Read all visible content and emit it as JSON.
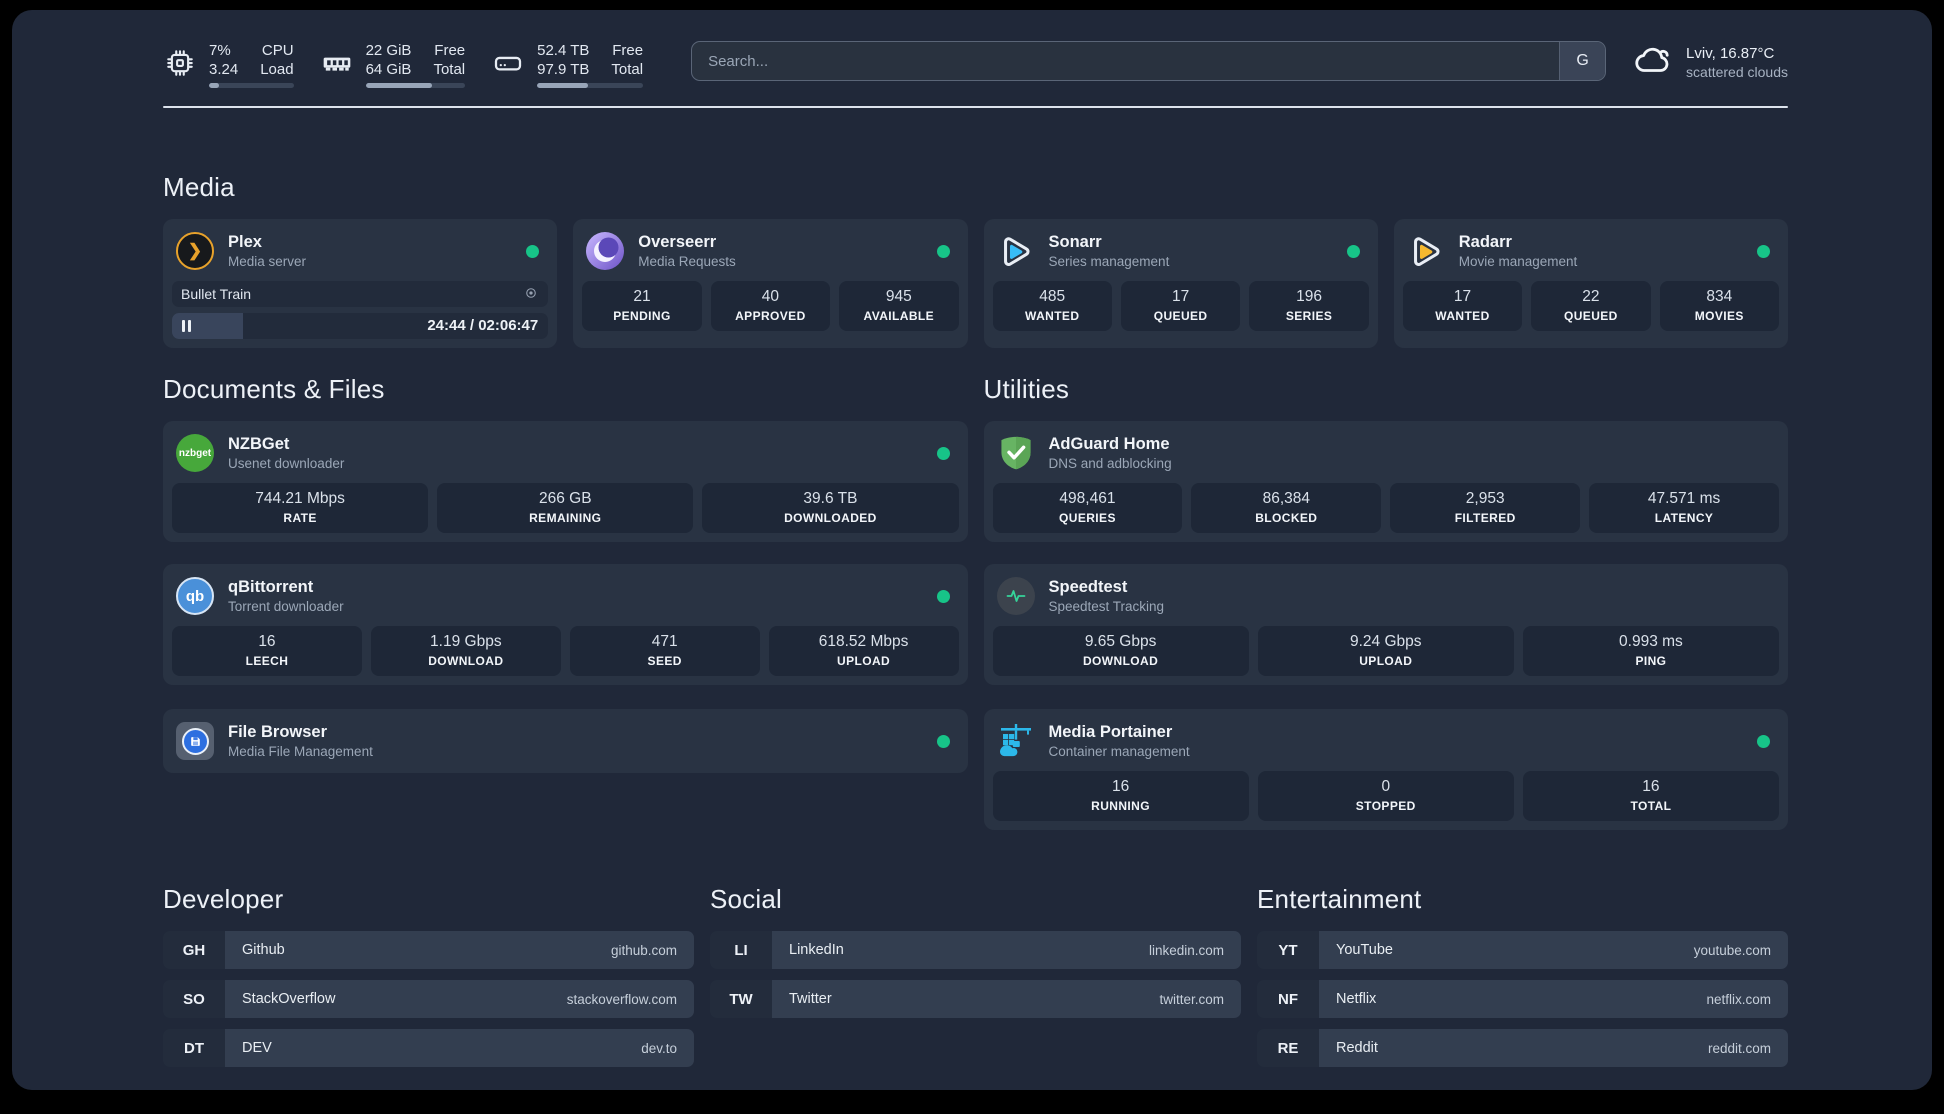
{
  "colors": {
    "page_background": "#202839",
    "card_background": "#293343",
    "stat_background": "#1E2737",
    "status_online_green": "#17C488",
    "plex_amber": "#E8A22B",
    "overseerr_purple": "#6D53C7",
    "sonarr_blue": "#38BDF8",
    "radarr_yellow": "#F5B82E",
    "nzbget_green": "#47A83B",
    "qbittorrent_blue": "#4A90D9",
    "adguard_green": "#67B463",
    "speedtest_pulse_green": "#35D49A",
    "filebrowser_blue": "#2D6FE0",
    "portainer_blue": "#2CB8EA"
  },
  "topbar": {
    "resources": [
      {
        "icon": "cpu-icon",
        "values": [
          "7%",
          "3.24"
        ],
        "labels": [
          "CPU",
          "Load"
        ],
        "bar_percent": 12
      },
      {
        "icon": "ram-icon",
        "values": [
          "22 GiB",
          "64 GiB"
        ],
        "labels": [
          "Free",
          "Total"
        ],
        "bar_percent": 67
      },
      {
        "icon": "disk-icon",
        "values": [
          "52.4 TB",
          "97.9 TB"
        ],
        "labels": [
          "Free",
          "Total"
        ],
        "bar_percent": 48
      }
    ],
    "search": {
      "placeholder": "Search...",
      "engine_button_label": "G"
    },
    "weather": {
      "icon": "cloud-icon",
      "headline": "Lviv, 16.87°C",
      "condition": "scattered clouds"
    }
  },
  "sections": {
    "media": {
      "heading": "Media",
      "plex": {
        "icon": "plex-icon",
        "title": "Plex",
        "subtitle": "Media server",
        "status": "online",
        "now_playing": {
          "title": "Bullet Train",
          "state_icon": "pause-icon",
          "settings_icon": "disc-icon",
          "time_display": "24:44 / 02:06:47",
          "progress_percent": 19
        }
      },
      "overseerr": {
        "icon": "overseerr-icon",
        "title": "Overseerr",
        "subtitle": "Media Requests",
        "status": "online",
        "stats": [
          {
            "value": "21",
            "label": "PENDING"
          },
          {
            "value": "40",
            "label": "APPROVED"
          },
          {
            "value": "945",
            "label": "AVAILABLE"
          }
        ]
      },
      "sonarr": {
        "icon": "sonarr-icon",
        "title": "Sonarr",
        "subtitle": "Series management",
        "status": "online",
        "stats": [
          {
            "value": "485",
            "label": "WANTED"
          },
          {
            "value": "17",
            "label": "QUEUED"
          },
          {
            "value": "196",
            "label": "SERIES"
          }
        ]
      },
      "radarr": {
        "icon": "radarr-icon",
        "title": "Radarr",
        "subtitle": "Movie management",
        "status": "online",
        "stats": [
          {
            "value": "17",
            "label": "WANTED"
          },
          {
            "value": "22",
            "label": "QUEUED"
          },
          {
            "value": "834",
            "label": "MOVIES"
          }
        ]
      }
    },
    "documents": {
      "heading": "Documents & Files",
      "nzbget": {
        "icon": "nzbget-icon",
        "badge_text": "nzbget",
        "title": "NZBGet",
        "subtitle": "Usenet downloader",
        "status": "online",
        "stats": [
          {
            "value": "744.21 Mbps",
            "label": "RATE"
          },
          {
            "value": "266 GB",
            "label": "REMAINING"
          },
          {
            "value": "39.6 TB",
            "label": "DOWNLOADED"
          }
        ]
      },
      "qbittorrent": {
        "icon": "qbittorrent-icon",
        "badge_text": "qb",
        "title": "qBittorrent",
        "subtitle": "Torrent downloader",
        "status": "online",
        "stats": [
          {
            "value": "16",
            "label": "LEECH"
          },
          {
            "value": "1.19 Gbps",
            "label": "DOWNLOAD"
          },
          {
            "value": "471",
            "label": "SEED"
          },
          {
            "value": "618.52 Mbps",
            "label": "UPLOAD"
          }
        ]
      },
      "filebrowser": {
        "icon": "filebrowser-icon",
        "title": "File Browser",
        "subtitle": "Media File Management",
        "status": "online"
      }
    },
    "utilities": {
      "heading": "Utilities",
      "adguard": {
        "icon": "adguard-icon",
        "title": "AdGuard Home",
        "subtitle": "DNS and adblocking",
        "stats": [
          {
            "value": "498,461",
            "label": "QUERIES"
          },
          {
            "value": "86,384",
            "label": "BLOCKED"
          },
          {
            "value": "2,953",
            "label": "FILTERED"
          },
          {
            "value": "47.571 ms",
            "label": "LATENCY"
          }
        ]
      },
      "speedtest": {
        "icon": "speedtest-icon",
        "title": "Speedtest",
        "subtitle": "Speedtest Tracking",
        "stats": [
          {
            "value": "9.65 Gbps",
            "label": "DOWNLOAD"
          },
          {
            "value": "9.24 Gbps",
            "label": "UPLOAD"
          },
          {
            "value": "0.993 ms",
            "label": "PING"
          }
        ]
      },
      "portainer": {
        "icon": "portainer-icon",
        "title": "Media Portainer",
        "subtitle": "Container management",
        "status": "online",
        "stats": [
          {
            "value": "16",
            "label": "RUNNING"
          },
          {
            "value": "0",
            "label": "STOPPED"
          },
          {
            "value": "16",
            "label": "TOTAL"
          }
        ]
      }
    },
    "bookmark_groups": [
      {
        "heading": "Developer",
        "items": [
          {
            "abbr": "GH",
            "name": "Github",
            "url": "github.com"
          },
          {
            "abbr": "SO",
            "name": "StackOverflow",
            "url": "stackoverflow.com"
          },
          {
            "abbr": "DT",
            "name": "DEV",
            "url": "dev.to"
          }
        ]
      },
      {
        "heading": "Social",
        "items": [
          {
            "abbr": "LI",
            "name": "LinkedIn",
            "url": "linkedin.com"
          },
          {
            "abbr": "TW",
            "name": "Twitter",
            "url": "twitter.com"
          }
        ]
      },
      {
        "heading": "Entertainment",
        "items": [
          {
            "abbr": "YT",
            "name": "YouTube",
            "url": "youtube.com"
          },
          {
            "abbr": "NF",
            "name": "Netflix",
            "url": "netflix.com"
          },
          {
            "abbr": "RE",
            "name": "Reddit",
            "url": "reddit.com"
          }
        ]
      }
    ]
  }
}
